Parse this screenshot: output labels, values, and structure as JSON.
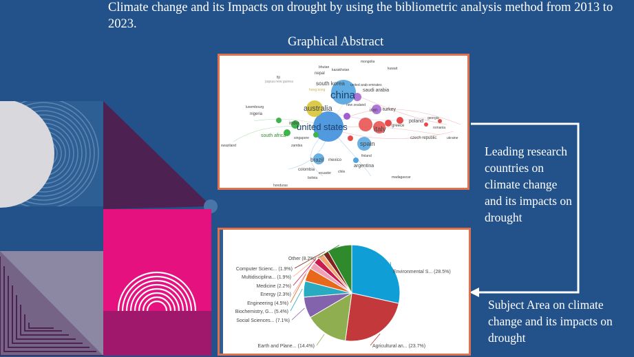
{
  "slide": {
    "title": "Climate change and its Impacts on drought by using the bibliometric analysis method from 2013 to 2023.",
    "subtitle": "Graphical Abstract",
    "caption_countries": "Leading research countries on climate change and its impacts on drought",
    "caption_subject": "Subject Area on climate change and its impacts on drought"
  },
  "network": {
    "labels": [
      {
        "text": "mongolia"
      },
      {
        "text": "bhutan"
      },
      {
        "text": "kazakhstan"
      },
      {
        "text": "kuwait"
      },
      {
        "text": "nepal"
      },
      {
        "text": "fiji"
      },
      {
        "text": "papua new guinea"
      },
      {
        "text": "south korea"
      },
      {
        "text": "united arab emirates"
      },
      {
        "text": "hong kong"
      },
      {
        "text": "china"
      },
      {
        "text": "saudi arabia"
      },
      {
        "text": "luxembourg"
      },
      {
        "text": "australia"
      },
      {
        "text": "new zealand"
      },
      {
        "text": "iran"
      },
      {
        "text": "turkey"
      },
      {
        "text": "nigeria"
      },
      {
        "text": "india"
      },
      {
        "text": "georgia"
      },
      {
        "text": "poland"
      },
      {
        "text": "greece"
      },
      {
        "text": "south africa"
      },
      {
        "text": "united states"
      },
      {
        "text": "italy"
      },
      {
        "text": "czech republic"
      },
      {
        "text": "singapore"
      },
      {
        "text": "romania"
      },
      {
        "text": "ukraine"
      },
      {
        "text": "swaziland"
      },
      {
        "text": "zambia"
      },
      {
        "text": "spain"
      },
      {
        "text": "finland"
      },
      {
        "text": "brazil"
      },
      {
        "text": "mexico"
      },
      {
        "text": "argentina"
      },
      {
        "text": "colombia"
      },
      {
        "text": "ecuador"
      },
      {
        "text": "chile"
      },
      {
        "text": "bolivia"
      },
      {
        "text": "madagascar"
      },
      {
        "text": "honduras"
      }
    ]
  },
  "chart_data": {
    "type": "pie",
    "title": "",
    "categories": [
      "Environmental S...",
      "Agricultural an...",
      "Earth and Plane...",
      "Social Sciences...",
      "Biochemistry, G...",
      "Engineering",
      "Energy",
      "Medicine",
      "Multidisciplina...",
      "Computer Scienc...",
      "Other"
    ],
    "values": [
      28.5,
      23.7,
      14.4,
      7.1,
      5.4,
      4.5,
      2.3,
      2.2,
      1.9,
      1.9,
      8.2
    ],
    "labels": [
      "Environmental S... (28.5%)",
      "Agricultural an... (23.7%)",
      "Earth and Plane... (14.4%)",
      "Social Sciences... (7.1%)",
      "Biochemistry, G... (5.4%)",
      "Engineering (4.5%)",
      "Energy (2.3%)",
      "Medicine (2.2%)",
      "Multidisciplina... (1.9%)",
      "Computer Scienc... (1.9%)",
      "Other (8.2%)"
    ],
    "colors": [
      "#0f9fd6",
      "#c3383a",
      "#8fae50",
      "#8363ab",
      "#2aaac0",
      "#e8681b",
      "#f0a1b8",
      "#c71c4d",
      "#f4a674",
      "#7e231e",
      "#2f8a2b"
    ],
    "legend": "none"
  }
}
